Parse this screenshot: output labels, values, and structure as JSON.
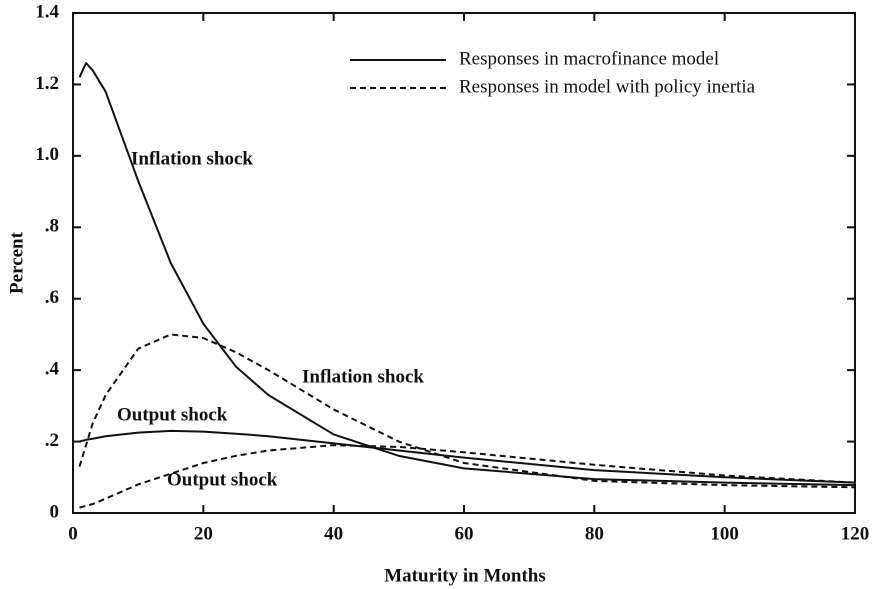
{
  "chart_data": {
    "type": "line",
    "xlabel": "Maturity in Months",
    "ylabel": "Percent",
    "x": [
      1,
      2,
      3,
      5,
      10,
      15,
      20,
      25,
      30,
      40,
      50,
      60,
      80,
      100,
      120
    ],
    "legend": [
      {
        "name": "Responses in macrofinance model",
        "dash": false
      },
      {
        "name": "Responses in model with policy inertia",
        "dash": true
      }
    ],
    "series": [
      {
        "name": "Inflation shock",
        "dash": false,
        "color": "#111111",
        "values": [
          1.22,
          1.26,
          1.24,
          1.18,
          0.93,
          0.7,
          0.53,
          0.41,
          0.33,
          0.22,
          0.16,
          0.125,
          0.095,
          0.085,
          0.078
        ]
      },
      {
        "name": "Output shock",
        "dash": false,
        "color": "#111111",
        "values": [
          0.2,
          0.205,
          0.208,
          0.215,
          0.225,
          0.23,
          0.228,
          0.222,
          0.215,
          0.195,
          0.175,
          0.155,
          0.12,
          0.1,
          0.085
        ]
      },
      {
        "name": "Inflation shock",
        "dash": true,
        "color": "#111111",
        "values": [
          0.13,
          0.19,
          0.25,
          0.33,
          0.46,
          0.5,
          0.49,
          0.45,
          0.4,
          0.29,
          0.2,
          0.14,
          0.09,
          0.078,
          0.072
        ]
      },
      {
        "name": "Output shock",
        "dash": true,
        "color": "#111111",
        "values": [
          0.015,
          0.02,
          0.025,
          0.04,
          0.08,
          0.11,
          0.14,
          0.16,
          0.175,
          0.19,
          0.185,
          0.17,
          0.135,
          0.105,
          0.085
        ]
      }
    ],
    "xlim": [
      0,
      120
    ],
    "xticks": [
      0,
      20,
      40,
      60,
      80,
      100,
      120
    ],
    "ylim": [
      0,
      1.4
    ],
    "yticks": [
      0,
      {
        "value": 0.2,
        "label": ".2"
      },
      {
        "value": 0.4,
        "label": ".4"
      },
      {
        "value": 0.6,
        "label": ".6"
      },
      {
        "value": 0.8,
        "label": ".8"
      },
      {
        "value": 1.0,
        "label": "1.0"
      },
      1.2,
      1.4
    ]
  }
}
